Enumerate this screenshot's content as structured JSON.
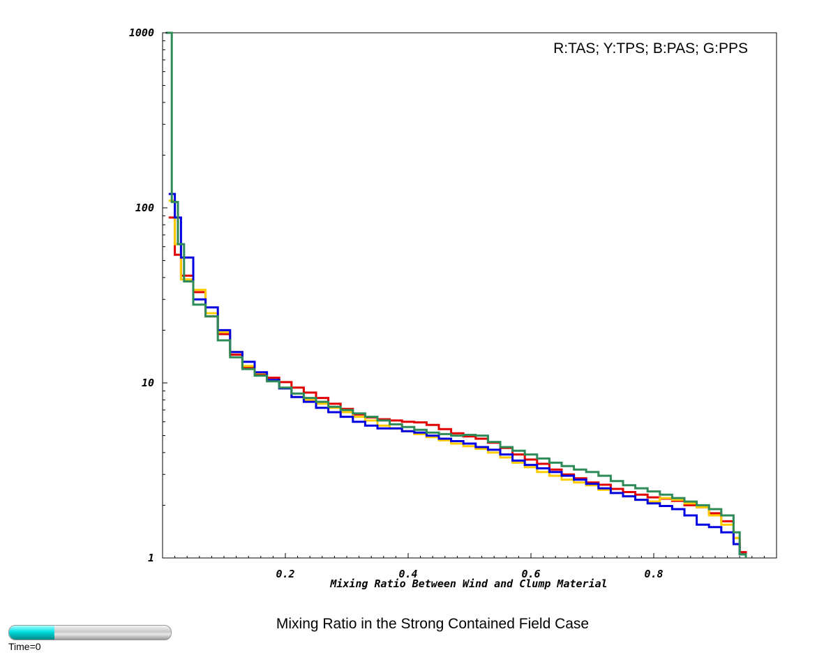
{
  "chart_data": {
    "type": "line",
    "subtitle": "",
    "legend_text": "R:TAS; Y:TPS; B:PAS; G:PPS",
    "legend_placement": "top-right",
    "xlabel": "Mixing Ratio Between Wind and Clump Material",
    "ylabel": "",
    "x_ticks": [
      "0.2",
      "0.4",
      "0.6",
      "0.8"
    ],
    "y_ticks": [
      "1",
      "10",
      "100",
      "1000"
    ],
    "xlim": [
      0,
      1
    ],
    "ylim": [
      1,
      1000
    ],
    "y_scale": "log",
    "grid": false,
    "series": [
      {
        "color": "#e00000",
        "x": [
          0.01,
          0.02,
          0.03,
          0.05,
          0.07,
          0.09,
          0.11,
          0.13,
          0.15,
          0.17,
          0.19,
          0.21,
          0.23,
          0.25,
          0.27,
          0.29,
          0.31,
          0.33,
          0.35,
          0.37,
          0.39,
          0.41,
          0.43,
          0.45,
          0.47,
          0.49,
          0.51,
          0.53,
          0.55,
          0.57,
          0.59,
          0.61,
          0.63,
          0.65,
          0.67,
          0.69,
          0.71,
          0.73,
          0.75,
          0.77,
          0.79,
          0.81,
          0.83,
          0.85,
          0.87,
          0.89,
          0.91,
          0.93,
          0.94,
          0.95
        ],
        "y": [
          88,
          54,
          41,
          33,
          24,
          19,
          14.5,
          12.2,
          11.2,
          10.7,
          10.1,
          9.4,
          8.8,
          8.2,
          7.6,
          7.1,
          6.6,
          6.35,
          6.2,
          6.1,
          6.0,
          5.95,
          5.75,
          5.45,
          5.15,
          4.95,
          4.8,
          4.55,
          4.25,
          3.9,
          3.65,
          3.45,
          3.2,
          3.0,
          2.85,
          2.7,
          2.62,
          2.48,
          2.38,
          2.3,
          2.22,
          2.18,
          2.12,
          2.0,
          1.95,
          1.8,
          1.62,
          1.3,
          1.08,
          1.0
        ]
      },
      {
        "color": "#ffcc00",
        "x": [
          0.01,
          0.02,
          0.03,
          0.05,
          0.07,
          0.09,
          0.11,
          0.13,
          0.15,
          0.17,
          0.19,
          0.21,
          0.23,
          0.25,
          0.27,
          0.29,
          0.31,
          0.33,
          0.35,
          0.37,
          0.39,
          0.41,
          0.43,
          0.45,
          0.47,
          0.49,
          0.51,
          0.53,
          0.55,
          0.57,
          0.59,
          0.61,
          0.63,
          0.65,
          0.67,
          0.69,
          0.71,
          0.73,
          0.75,
          0.77,
          0.79,
          0.81,
          0.83,
          0.85,
          0.87,
          0.89,
          0.91,
          0.93,
          0.94,
          0.95
        ],
        "y": [
          110,
          62,
          39,
          34,
          25,
          19.5,
          15,
          12.5,
          11.4,
          10.3,
          9.3,
          8.3,
          8.0,
          7.6,
          7.2,
          6.8,
          6.4,
          6.1,
          5.7,
          5.5,
          5.3,
          5.1,
          4.9,
          4.7,
          4.5,
          4.35,
          4.2,
          4.0,
          3.75,
          3.5,
          3.3,
          3.1,
          2.95,
          2.8,
          2.7,
          2.6,
          2.45,
          2.35,
          2.25,
          2.15,
          2.1,
          2.2,
          2.15,
          2.05,
          1.95,
          1.75,
          1.55,
          1.3,
          1.05,
          1.0
        ]
      },
      {
        "color": "#0000e0",
        "x": [
          0.01,
          0.02,
          0.03,
          0.05,
          0.07,
          0.09,
          0.11,
          0.13,
          0.15,
          0.17,
          0.19,
          0.21,
          0.23,
          0.25,
          0.27,
          0.29,
          0.31,
          0.33,
          0.35,
          0.37,
          0.39,
          0.41,
          0.43,
          0.45,
          0.47,
          0.49,
          0.51,
          0.53,
          0.55,
          0.57,
          0.59,
          0.61,
          0.63,
          0.65,
          0.67,
          0.69,
          0.71,
          0.73,
          0.75,
          0.77,
          0.79,
          0.81,
          0.83,
          0.85,
          0.87,
          0.89,
          0.91,
          0.93,
          0.94,
          0.95
        ],
        "y": [
          120,
          88,
          52,
          30,
          27,
          20,
          15,
          13.2,
          11.5,
          10.4,
          9.3,
          8.3,
          7.8,
          7.2,
          6.8,
          6.4,
          6.0,
          5.7,
          5.5,
          5.5,
          5.3,
          5.2,
          5.0,
          4.8,
          4.65,
          4.5,
          4.3,
          4.15,
          3.9,
          3.6,
          3.4,
          3.25,
          3.1,
          2.95,
          2.8,
          2.65,
          2.5,
          2.35,
          2.25,
          2.15,
          2.05,
          1.98,
          1.9,
          1.75,
          1.55,
          1.5,
          1.4,
          1.2,
          1.05,
          1.0
        ]
      },
      {
        "color": "#2e8b57",
        "x": [
          0.005,
          0.015,
          0.025,
          0.035,
          0.05,
          0.07,
          0.09,
          0.11,
          0.13,
          0.15,
          0.17,
          0.19,
          0.21,
          0.23,
          0.25,
          0.27,
          0.29,
          0.31,
          0.33,
          0.35,
          0.37,
          0.39,
          0.41,
          0.43,
          0.45,
          0.47,
          0.49,
          0.51,
          0.53,
          0.55,
          0.57,
          0.59,
          0.61,
          0.63,
          0.65,
          0.67,
          0.69,
          0.71,
          0.73,
          0.75,
          0.77,
          0.79,
          0.81,
          0.83,
          0.85,
          0.87,
          0.89,
          0.91,
          0.93,
          0.94,
          0.95
        ],
        "y": [
          1000,
          108,
          62,
          38,
          28,
          24,
          17.5,
          14,
          12,
          11,
          10.2,
          9.4,
          8.7,
          8.2,
          7.8,
          7.3,
          7.0,
          6.7,
          6.4,
          6.1,
          5.8,
          5.6,
          5.4,
          5.2,
          5.1,
          5.0,
          5.05,
          5.0,
          4.6,
          4.3,
          4.1,
          3.9,
          3.7,
          3.5,
          3.35,
          3.2,
          3.1,
          2.95,
          2.75,
          2.6,
          2.5,
          2.4,
          2.3,
          2.2,
          2.1,
          2.0,
          1.9,
          1.75,
          1.4,
          1.05,
          1.0
        ]
      }
    ]
  },
  "footer": {
    "title": "Mixing Ratio in the Strong Contained Field Case",
    "time_label": "Time=0",
    "time_progress": 0.28
  }
}
